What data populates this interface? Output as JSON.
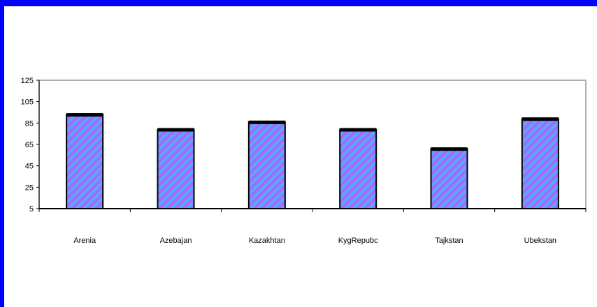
{
  "chart_data": {
    "type": "bar",
    "categories": [
      "Arenia",
      "Azebajan",
      "Kazakhtan",
      "KygRepubc",
      "Tajkstan",
      "Ubekstan"
    ],
    "values": [
      93,
      79,
      86,
      79,
      61,
      89
    ],
    "yticks": [
      "5",
      "25",
      "45",
      "65",
      "85",
      "105",
      "125"
    ],
    "ylim": [
      5,
      125
    ],
    "grid": false,
    "colors": {
      "bar_fill": "#55aaff",
      "bar_stripe": "#aa66ff",
      "bar_edge": "#000000",
      "frame": "#0000ff"
    }
  }
}
